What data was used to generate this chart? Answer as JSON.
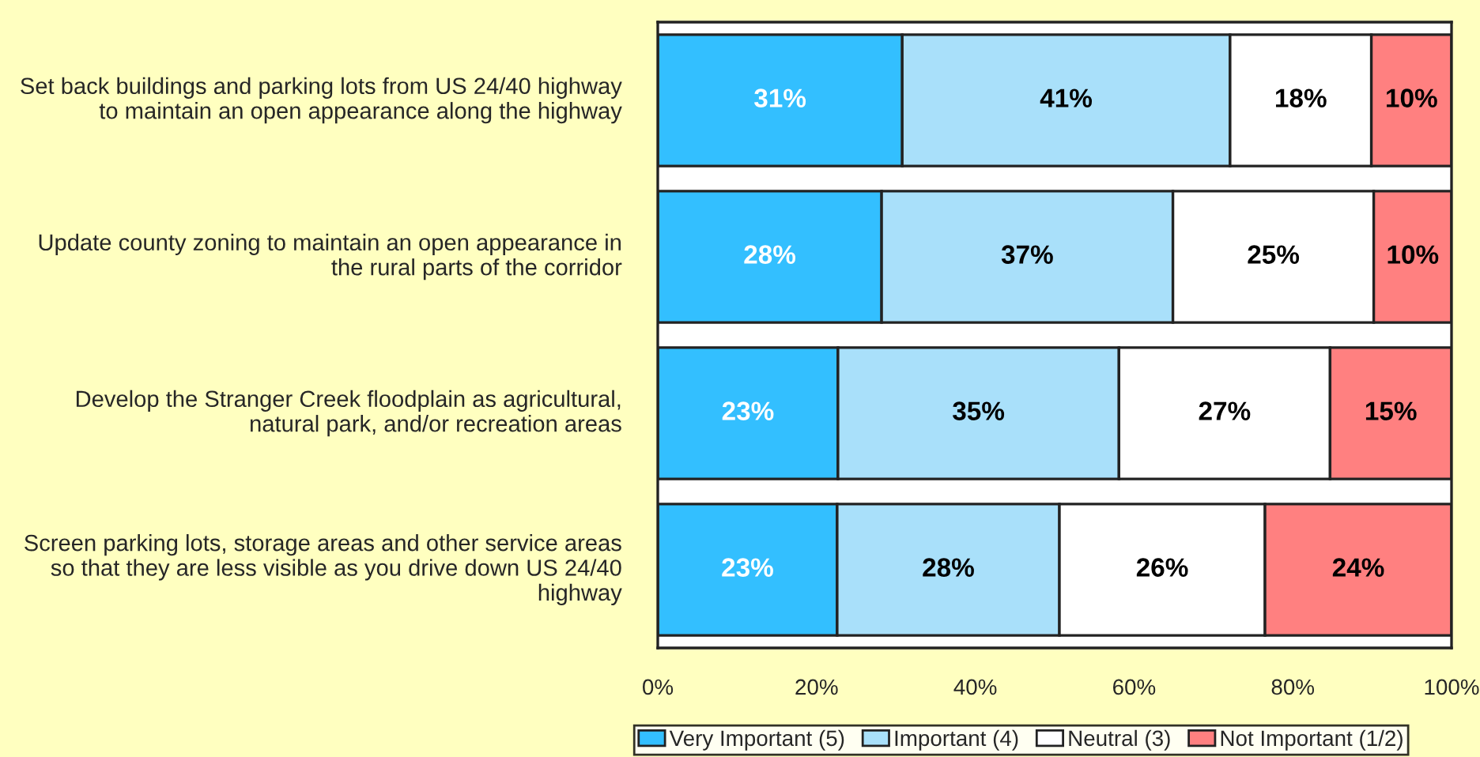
{
  "chart_data": {
    "type": "bar",
    "orientation": "horizontal",
    "stacked": true,
    "categories": [
      "Set back buildings and parking lots from US 24/40 highway to maintain an open appearance along the highway",
      "Update county zoning to maintain an open appearance in the rural parts of the corridor",
      "Develop the Stranger Creek floodplain as agricultural, natural park, and/or recreation areas",
      "Screen parking lots, storage areas and other service areas so that they are less visible as you drive down US 24/40 highway"
    ],
    "series": [
      {
        "name": "Very Important (5)",
        "color": "#33bfff",
        "values": [
          30.8,
          28.2,
          22.7,
          22.6
        ],
        "value_labels": [
          "31%",
          "28%",
          "23%",
          "23%"
        ]
      },
      {
        "name": "Important (4)",
        "color": "#a9e0fa",
        "values": [
          41.3,
          36.7,
          35.4,
          28.0
        ],
        "value_labels": [
          "41%",
          "37%",
          "35%",
          "28%"
        ]
      },
      {
        "name": "Neutral (3)",
        "color": "#ffffff",
        "values": [
          17.8,
          25.3,
          26.6,
          25.9
        ],
        "value_labels": [
          "18%",
          "25%",
          "27%",
          "26%"
        ]
      },
      {
        "name": "Not Important (1/2)",
        "color": "#ff8080",
        "values": [
          10.1,
          9.8,
          15.3,
          23.5
        ],
        "value_labels": [
          "10%",
          "10%",
          "15%",
          "24%"
        ]
      }
    ],
    "xlim": [
      0,
      100
    ],
    "xticks": [
      {
        "value": 0,
        "label": "0%"
      },
      {
        "value": 20,
        "label": "20%"
      },
      {
        "value": 40,
        "label": "40%"
      },
      {
        "value": 60,
        "label": "60%"
      },
      {
        "value": 80,
        "label": "80%"
      },
      {
        "value": 100,
        "label": "100%"
      }
    ],
    "legend": "bottom",
    "grid": false
  }
}
